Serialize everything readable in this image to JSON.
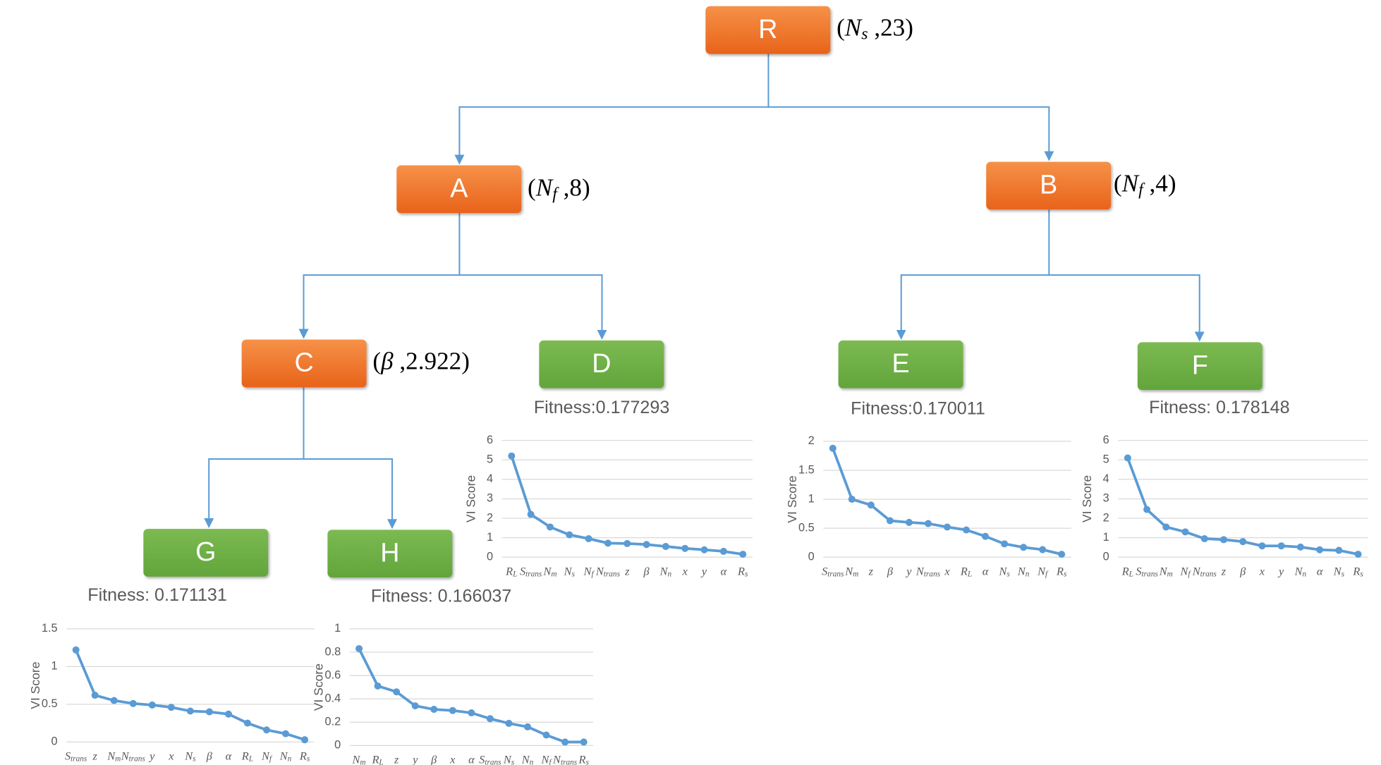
{
  "nodes": [
    {
      "label": "R",
      "split": [
        {
          "text": "(",
          "style": "roman"
        },
        {
          "text": "N",
          "style": "italic"
        },
        {
          "text": "s",
          "style": "sub"
        },
        {
          "text": " ,23)",
          "style": "roman"
        }
      ]
    },
    {
      "label": "A",
      "split": [
        {
          "text": "(",
          "style": "roman"
        },
        {
          "text": "N",
          "style": "italic"
        },
        {
          "text": "f",
          "style": "sub"
        },
        {
          "text": " ,8)",
          "style": "roman"
        }
      ]
    },
    {
      "label": "B",
      "split": [
        {
          "text": "(",
          "style": "roman"
        },
        {
          "text": "N",
          "style": "italic"
        },
        {
          "text": "f",
          "style": "sub"
        },
        {
          "text": " ,4)",
          "style": "roman"
        }
      ]
    },
    {
      "label": "C",
      "split": [
        {
          "text": "(",
          "style": "roman"
        },
        {
          "text": "β",
          "style": "italic"
        },
        {
          "text": " ,2.922)",
          "style": "roman"
        }
      ]
    },
    {
      "label": "D",
      "fitness": "Fitness:0.177293"
    },
    {
      "label": "E",
      "fitness": "Fitness:0.170011"
    },
    {
      "label": "F",
      "fitness": "Fitness: 0.178148"
    },
    {
      "label": "G",
      "fitness": "Fitness: 0.171131"
    },
    {
      "label": "H",
      "fitness": "Fitness: 0.166037"
    }
  ],
  "chart_data": [
    {
      "type": "line",
      "ylabel": "VI Score",
      "color": "#5b9bd5",
      "grid": true,
      "categories": [
        {
          "sym": "R",
          "sub": "L"
        },
        {
          "sym": "S",
          "sub": "trans"
        },
        {
          "sym": "N",
          "sub": "m"
        },
        {
          "sym": "N",
          "sub": "s"
        },
        {
          "sym": "N",
          "sub": "f"
        },
        {
          "sym": "N",
          "sub": "trans"
        },
        {
          "sym": "z"
        },
        {
          "sym": "β"
        },
        {
          "sym": "N",
          "sub": "n"
        },
        {
          "sym": "x"
        },
        {
          "sym": "y"
        },
        {
          "sym": "α"
        },
        {
          "sym": "R",
          "sub": "s"
        }
      ],
      "values": [
        5.2,
        2.2,
        1.55,
        1.15,
        0.95,
        0.72,
        0.7,
        0.65,
        0.55,
        0.45,
        0.38,
        0.3,
        0.15
      ],
      "ylim": [
        0,
        6
      ],
      "yticks": [
        0,
        1,
        2,
        3,
        4,
        5,
        6
      ]
    },
    {
      "type": "line",
      "ylabel": "VI Score",
      "color": "#5b9bd5",
      "grid": true,
      "categories": [
        {
          "sym": "S",
          "sub": "trans"
        },
        {
          "sym": "N",
          "sub": "m"
        },
        {
          "sym": "z"
        },
        {
          "sym": "β"
        },
        {
          "sym": "y"
        },
        {
          "sym": "N",
          "sub": "trans"
        },
        {
          "sym": "x"
        },
        {
          "sym": "R",
          "sub": "L"
        },
        {
          "sym": "α"
        },
        {
          "sym": "N",
          "sub": "s"
        },
        {
          "sym": "N",
          "sub": "n"
        },
        {
          "sym": "N",
          "sub": "f"
        },
        {
          "sym": "R",
          "sub": "s"
        }
      ],
      "values": [
        1.88,
        1.0,
        0.9,
        0.63,
        0.6,
        0.58,
        0.52,
        0.47,
        0.36,
        0.23,
        0.17,
        0.13,
        0.05
      ],
      "ylim": [
        0,
        2
      ],
      "yticks": [
        0,
        0.5,
        1,
        1.5,
        2
      ]
    },
    {
      "type": "line",
      "ylabel": "VI Score",
      "color": "#5b9bd5",
      "grid": true,
      "categories": [
        {
          "sym": "R",
          "sub": "L"
        },
        {
          "sym": "S",
          "sub": "trans"
        },
        {
          "sym": "N",
          "sub": "m"
        },
        {
          "sym": "N",
          "sub": "f"
        },
        {
          "sym": "N",
          "sub": "trans"
        },
        {
          "sym": "z"
        },
        {
          "sym": "β"
        },
        {
          "sym": "x"
        },
        {
          "sym": "y"
        },
        {
          "sym": "N",
          "sub": "n"
        },
        {
          "sym": "α"
        },
        {
          "sym": "N",
          "sub": "s"
        },
        {
          "sym": "R",
          "sub": "s"
        }
      ],
      "values": [
        5.1,
        2.45,
        1.55,
        1.3,
        0.95,
        0.9,
        0.8,
        0.58,
        0.58,
        0.52,
        0.38,
        0.35,
        0.15
      ],
      "ylim": [
        0,
        6
      ],
      "yticks": [
        0,
        1,
        2,
        3,
        4,
        5,
        6
      ]
    },
    {
      "type": "line",
      "ylabel": "VI Score",
      "color": "#5b9bd5",
      "grid": true,
      "categories": [
        {
          "sym": "S",
          "sub": "trans"
        },
        {
          "sym": "z"
        },
        {
          "sym": "N",
          "sub": "m"
        },
        {
          "sym": "N",
          "sub": "trans"
        },
        {
          "sym": "y"
        },
        {
          "sym": "x"
        },
        {
          "sym": "N",
          "sub": "s"
        },
        {
          "sym": "β"
        },
        {
          "sym": "α"
        },
        {
          "sym": "R",
          "sub": "L"
        },
        {
          "sym": "N",
          "sub": "f"
        },
        {
          "sym": "N",
          "sub": "n"
        },
        {
          "sym": "R",
          "sub": "s"
        }
      ],
      "values": [
        1.22,
        0.62,
        0.55,
        0.51,
        0.49,
        0.46,
        0.41,
        0.4,
        0.37,
        0.25,
        0.16,
        0.11,
        0.03
      ],
      "ylim": [
        0,
        1.5
      ],
      "yticks": [
        0,
        0.5,
        1,
        1.5
      ]
    },
    {
      "type": "line",
      "ylabel": "VI Score",
      "color": "#5b9bd5",
      "grid": true,
      "categories": [
        {
          "sym": "N",
          "sub": "m"
        },
        {
          "sym": "R",
          "sub": "L"
        },
        {
          "sym": "z"
        },
        {
          "sym": "y"
        },
        {
          "sym": "β"
        },
        {
          "sym": "x"
        },
        {
          "sym": "α"
        },
        {
          "sym": "S",
          "sub": "trans"
        },
        {
          "sym": "N",
          "sub": "s"
        },
        {
          "sym": "N",
          "sub": "n"
        },
        {
          "sym": "N",
          "sub": "f"
        },
        {
          "sym": "N",
          "sub": "trans"
        },
        {
          "sym": "R",
          "sub": "s"
        }
      ],
      "values": [
        0.83,
        0.51,
        0.46,
        0.34,
        0.31,
        0.3,
        0.28,
        0.23,
        0.19,
        0.16,
        0.09,
        0.03,
        0.03
      ],
      "ylim": [
        0,
        1
      ],
      "yticks": [
        0,
        0.2,
        0.4,
        0.6,
        0.8,
        1
      ]
    }
  ]
}
